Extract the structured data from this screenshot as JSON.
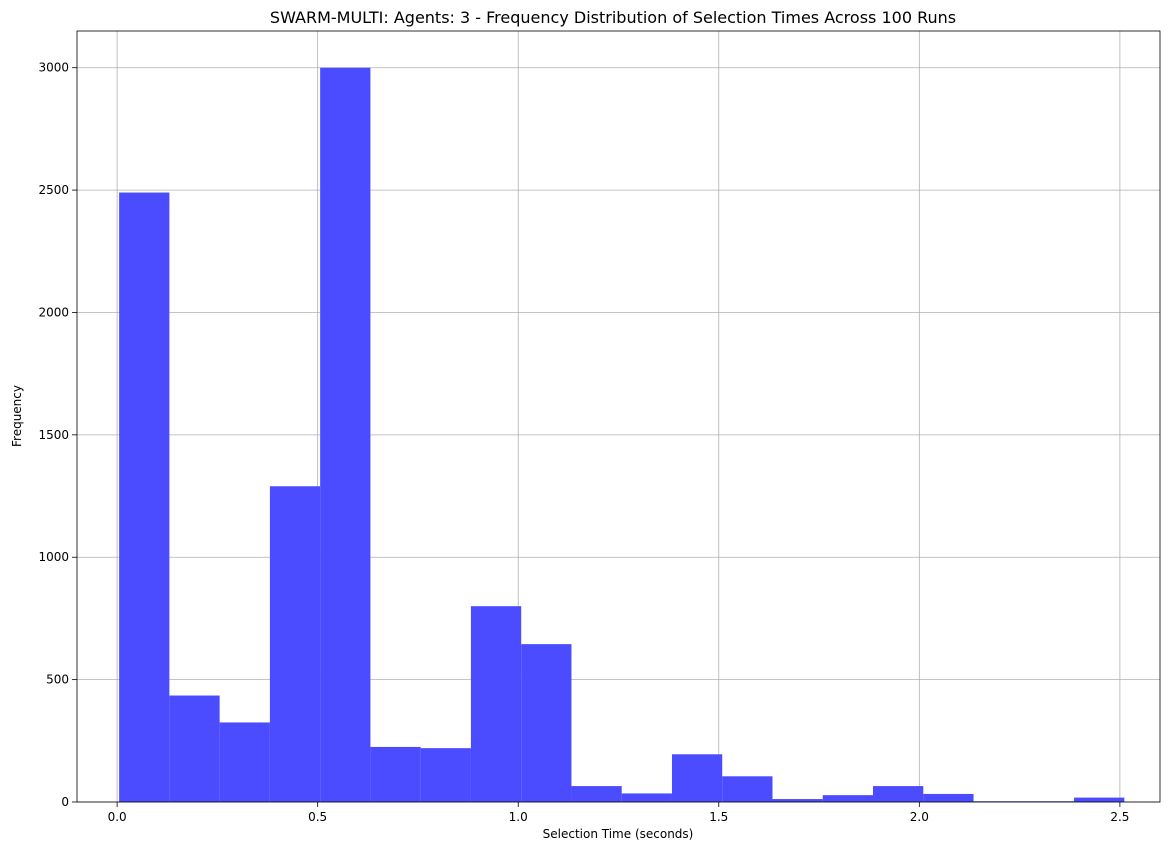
{
  "chart_data": {
    "type": "bar",
    "title": "SWARM-MULTI: Agents: 3 - Frequency Distribution of Selection Times Across 100 Runs",
    "xlabel": "Selection Time (seconds)",
    "ylabel": "Frequency",
    "xlim": [
      -0.1,
      2.6
    ],
    "ylim": [
      0,
      3150
    ],
    "xticks": [
      0.0,
      0.5,
      1.0,
      1.5,
      2.0,
      2.5
    ],
    "xtick_labels": [
      "0.0",
      "0.5",
      "1.0",
      "1.5",
      "2.0",
      "2.5"
    ],
    "yticks": [
      0,
      500,
      1000,
      1500,
      2000,
      2500,
      3000
    ],
    "ytick_labels": [
      "0",
      "500",
      "1000",
      "1500",
      "2000",
      "2500",
      "3000"
    ],
    "grid": true,
    "bar_color": "#4b4bff",
    "bin_edges": [
      0.005,
      0.1303,
      0.2556,
      0.3809,
      0.5062,
      0.6315,
      0.7568,
      0.8821,
      1.0074,
      1.1327,
      1.258,
      1.3833,
      1.5086,
      1.6339,
      1.7592,
      1.8845,
      2.0098,
      2.1351,
      2.2604,
      2.3857,
      2.511
    ],
    "values": [
      2490,
      435,
      325,
      1290,
      3000,
      225,
      220,
      800,
      645,
      65,
      35,
      195,
      105,
      12,
      28,
      65,
      33,
      3,
      3,
      18
    ]
  }
}
